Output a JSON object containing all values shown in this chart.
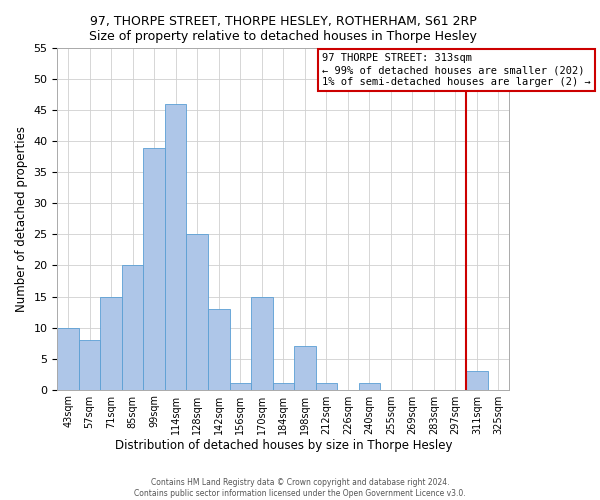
{
  "title": "97, THORPE STREET, THORPE HESLEY, ROTHERHAM, S61 2RP",
  "subtitle": "Size of property relative to detached houses in Thorpe Hesley",
  "xlabel": "Distribution of detached houses by size in Thorpe Hesley",
  "ylabel": "Number of detached properties",
  "bin_labels": [
    "43sqm",
    "57sqm",
    "71sqm",
    "85sqm",
    "99sqm",
    "114sqm",
    "128sqm",
    "142sqm",
    "156sqm",
    "170sqm",
    "184sqm",
    "198sqm",
    "212sqm",
    "226sqm",
    "240sqm",
    "255sqm",
    "269sqm",
    "283sqm",
    "297sqm",
    "311sqm",
    "325sqm"
  ],
  "bar_values": [
    10,
    8,
    15,
    20,
    39,
    46,
    25,
    13,
    1,
    15,
    1,
    7,
    1,
    0,
    1,
    0,
    0,
    0,
    0,
    3,
    0
  ],
  "bar_color": "#aec6e8",
  "bar_edge_color": "#5a9fd4",
  "vline_color": "#cc0000",
  "vline_index": 19,
  "annotation_title": "97 THORPE STREET: 313sqm",
  "annotation_line1": "← 99% of detached houses are smaller (202)",
  "annotation_line2": "1% of semi-detached houses are larger (2) →",
  "annotation_box_color": "#cc0000",
  "ylim": [
    0,
    55
  ],
  "yticks": [
    0,
    5,
    10,
    15,
    20,
    25,
    30,
    35,
    40,
    45,
    50,
    55
  ],
  "footer_line1": "Contains HM Land Registry data © Crown copyright and database right 2024.",
  "footer_line2": "Contains public sector information licensed under the Open Government Licence v3.0."
}
